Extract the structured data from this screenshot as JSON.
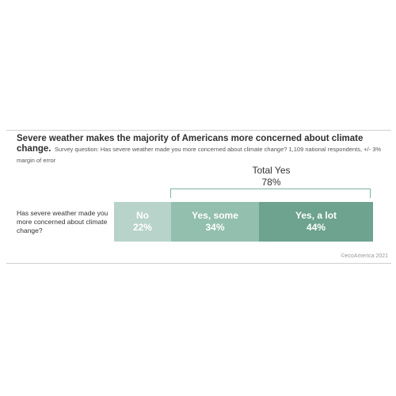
{
  "header": {
    "title": "Severe weather makes the majority of Americans more concerned about climate change.",
    "subtitle": "Survey question: Has severe weather made you more concerned about climate change? 1,109 national respondents, +/- 3% margin of error"
  },
  "chart_data": {
    "type": "bar",
    "orientation": "horizontal-stacked",
    "category": "Has severe weather made you more concerned about climate change?",
    "series": [
      {
        "name": "No",
        "value": 22,
        "label": "22%",
        "color": "#b8d3c9"
      },
      {
        "name": "Yes, some",
        "value": 34,
        "label": "34%",
        "color": "#93bfae"
      },
      {
        "name": "Yes, a lot",
        "value": 44,
        "label": "44%",
        "color": "#6da38f"
      }
    ],
    "total_yes": {
      "label": "Total Yes",
      "value": "78%"
    }
  },
  "footer": {
    "source": "©ecoAmerica 2021"
  }
}
